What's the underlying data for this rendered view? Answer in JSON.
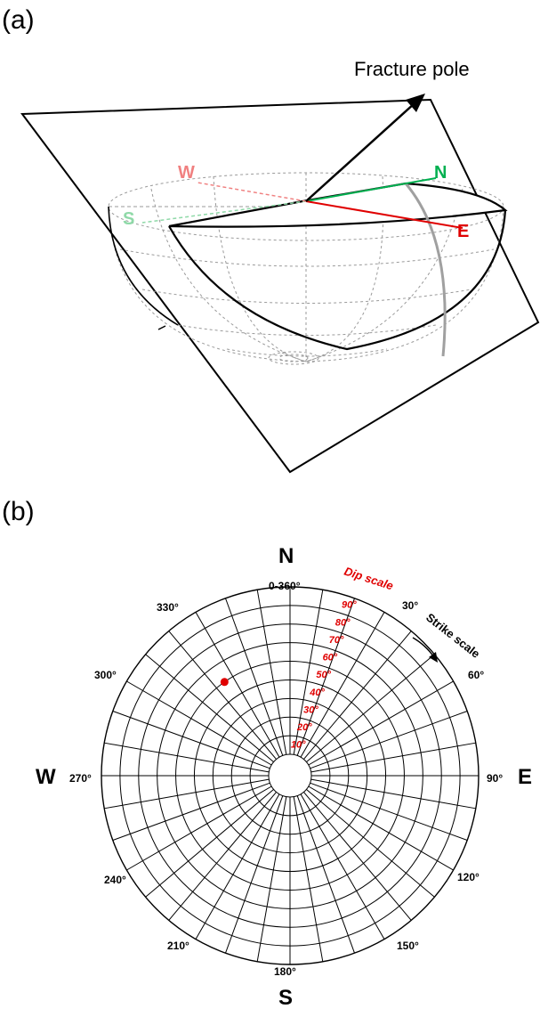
{
  "panel_a": {
    "label": "(a)",
    "arrow_label": "Fracture pole",
    "directions": {
      "n": "N",
      "s": "S",
      "e": "E",
      "w": "W"
    }
  },
  "panel_b": {
    "label": "(b)",
    "compass": {
      "n": "N",
      "s": "S",
      "e": "E",
      "w": "W"
    },
    "strike_scale_label": "Strike scale",
    "dip_scale_label": "Dip scale",
    "strike_ticks": {
      "t0": "0-360°",
      "t30": "30°",
      "t60": "60°",
      "t90": "90°",
      "t120": "120°",
      "t150": "150°",
      "t180": "180°",
      "t210": "210°",
      "t240": "240°",
      "t270": "270°",
      "t300": "300°",
      "t330": "330°"
    },
    "dip_ticks": {
      "d10": "10°",
      "d20": "20°",
      "d30": "30°",
      "d40": "40°",
      "d50": "50°",
      "d60": "60°",
      "d70": "70°",
      "d80": "80°",
      "d90": "90°"
    },
    "pole_point": {
      "strike_deg": 325,
      "dip_deg": 50,
      "color": "#e00000"
    }
  },
  "colors": {
    "north": "#00b050",
    "east": "#e00000",
    "south": "#8fd9a8",
    "west": "#f08080",
    "dip_red": "#e00000"
  }
}
